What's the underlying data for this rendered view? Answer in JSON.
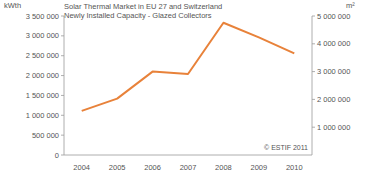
{
  "chart_data": {
    "type": "line",
    "title": "Solar Thermal Market in EU 27 and Switzerland",
    "subtitle": "Newly Installed Capacity - Glazed Collectors",
    "y_label": "kWth",
    "y2_label": "m²",
    "annotation": "© ESTIF 2011",
    "categories": [
      "2004",
      "2005",
      "2006",
      "2007",
      "2008",
      "2009",
      "2010"
    ],
    "values": [
      1110000,
      1420000,
      2100000,
      2040000,
      3330000,
      2960000,
      2560000
    ],
    "color": "#e8823a",
    "grid": false,
    "ylim": [
      0,
      3500000
    ],
    "yticks": [
      0,
      {
        "value": 500000,
        "label": "500 000"
      },
      {
        "value": 1000000,
        "label": "1 000 000"
      },
      {
        "value": 1500000,
        "label": "1 500 000"
      },
      {
        "value": 2000000,
        "label": "2 000 000"
      },
      {
        "value": 2500000,
        "label": "2 500 000"
      },
      {
        "value": 3000000,
        "label": "3 000 000"
      },
      {
        "value": 3500000,
        "label": "3 500 000"
      }
    ],
    "y2lim": [
      0,
      5000000
    ],
    "y2ticks": [
      {
        "value": 1000000,
        "label": "1 000 000"
      },
      {
        "value": 2000000,
        "label": "2 000 000"
      },
      {
        "value": 3000000,
        "label": "3 000 000"
      },
      {
        "value": 4000000,
        "label": "4 000 000"
      },
      {
        "value": 5000000,
        "label": "5 000 000"
      }
    ]
  }
}
